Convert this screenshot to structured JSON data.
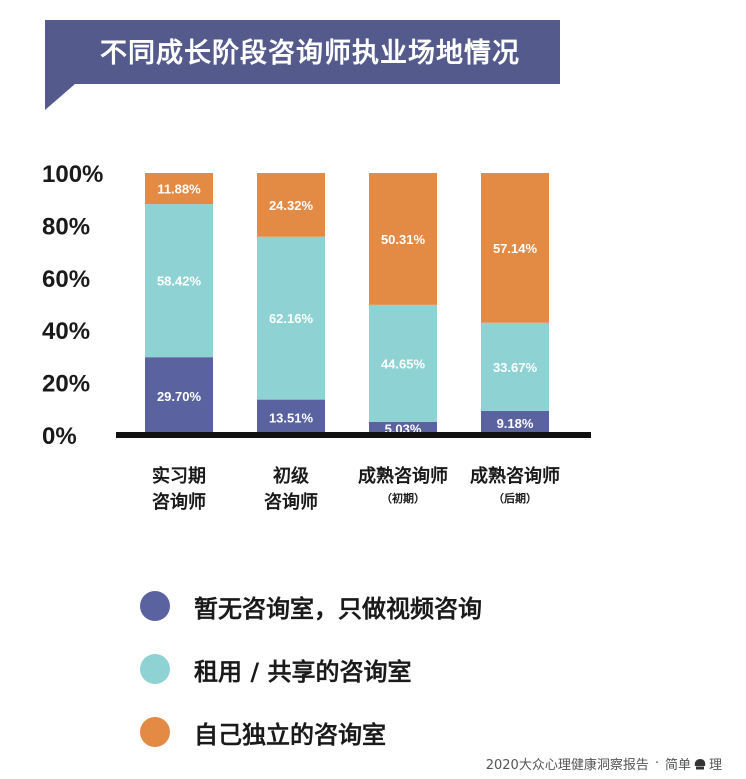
{
  "title": "不同成长阶段咨询师执业场地情况",
  "colors": {
    "banner": "#545b8c",
    "series_none": "#5a629f",
    "series_shared": "#8fd2d4",
    "series_own": "#e38a45",
    "axis": "#111111"
  },
  "chart_data": {
    "type": "bar",
    "stacked": true,
    "y_ticks": [
      "0%",
      "20%",
      "40%",
      "60%",
      "80%",
      "100%"
    ],
    "ylim": [
      0,
      100
    ],
    "categories": [
      {
        "line1": "实习期",
        "line2": "咨询师",
        "line2_small": false
      },
      {
        "line1": "初级",
        "line2": "咨询师",
        "line2_small": false
      },
      {
        "line1": "成熟咨询师",
        "line2": "（初期）",
        "line2_small": true
      },
      {
        "line1": "成熟咨询师",
        "line2": "（后期）",
        "line2_small": true
      }
    ],
    "series": [
      {
        "name": "暂无咨询室，只做视频咨询",
        "color": "#5a629f",
        "values": [
          29.7,
          13.51,
          5.03,
          9.18
        ],
        "labels": [
          "29.70%",
          "13.51%",
          "5.03%",
          "9.18%"
        ]
      },
      {
        "name": "租用 / 共享的咨询室",
        "color": "#8fd2d4",
        "values": [
          58.42,
          62.16,
          44.65,
          33.67
        ],
        "labels": [
          "58.42%",
          "62.16%",
          "44.65%",
          "33.67%"
        ]
      },
      {
        "name": "自己独立的咨询室",
        "color": "#e38a45",
        "values": [
          11.88,
          24.32,
          50.31,
          57.14
        ],
        "labels": [
          "11.88%",
          "24.32%",
          "50.31%",
          "57.14%"
        ]
      }
    ],
    "legend_position": "bottom"
  },
  "legend": [
    {
      "label": "暂无咨询室，只做视频咨询",
      "color": "#5a629f"
    },
    {
      "label": "租用 / 共享的咨询室",
      "color": "#8fd2d4"
    },
    {
      "label": "自己独立的咨询室",
      "color": "#e38a45"
    }
  ],
  "footer": {
    "report": "2020大众心理健康洞察报告",
    "separator": "·",
    "brand_before": "简单",
    "brand_after": "理",
    "brand_icon": "brain-logo-icon"
  }
}
